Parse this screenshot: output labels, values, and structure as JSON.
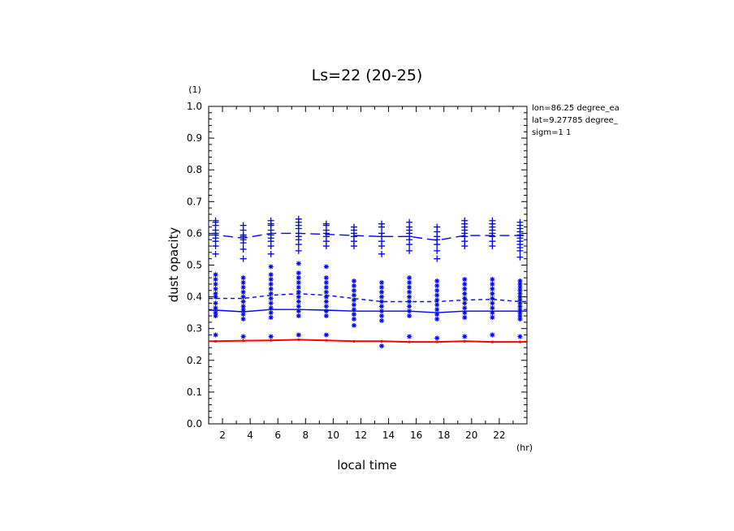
{
  "chart_data": {
    "type": "line",
    "title": "Ls=22 (20-25)",
    "xlabel": "local time",
    "ylabel": "dust opacity",
    "x_unit": "(hr)",
    "y_unit": "(1)",
    "xlim": [
      1,
      24
    ],
    "ylim": [
      0,
      1
    ],
    "xticks": [
      2,
      4,
      6,
      8,
      10,
      12,
      14,
      16,
      18,
      20,
      22
    ],
    "yticks": [
      0.0,
      0.1,
      0.2,
      0.3,
      0.4,
      0.5,
      0.6,
      0.7,
      0.8,
      0.9,
      1.0
    ],
    "grid": false,
    "info_lines": [
      "lon=86.25 degree_ea",
      "lat=9.27785 degree_",
      "sigm=1 1"
    ],
    "x": [
      1.5,
      3.5,
      5.5,
      7.5,
      9.5,
      11.5,
      13.5,
      15.5,
      17.5,
      19.5,
      21.5,
      23.5
    ],
    "series": [
      {
        "style": "dashed",
        "color": "#0000ff",
        "values": [
          0.595,
          0.585,
          0.6,
          0.6,
          0.597,
          0.593,
          0.59,
          0.59,
          0.578,
          0.593,
          0.593,
          0.593
        ]
      },
      {
        "style": "dashed",
        "color": "#0000ff",
        "values": [
          0.395,
          0.395,
          0.405,
          0.41,
          0.405,
          0.395,
          0.385,
          0.385,
          0.385,
          0.39,
          0.392,
          0.385
        ]
      },
      {
        "style": "solid",
        "color": "#0000ff",
        "values": [
          0.358,
          0.353,
          0.36,
          0.36,
          0.358,
          0.355,
          0.355,
          0.355,
          0.35,
          0.355,
          0.355,
          0.355
        ]
      },
      {
        "style": "solid",
        "color": "#ff0000",
        "values": [
          0.26,
          0.262,
          0.263,
          0.265,
          0.263,
          0.26,
          0.26,
          0.258,
          0.258,
          0.26,
          0.258,
          0.258
        ]
      }
    ],
    "scatter_plus": [
      {
        "x": 1.5,
        "y": [
          0.64,
          0.635,
          0.625,
          0.61,
          0.6,
          0.595,
          0.585,
          0.575,
          0.56,
          0.535
        ]
      },
      {
        "x": 3.5,
        "y": [
          0.625,
          0.61,
          0.595,
          0.59,
          0.58,
          0.57,
          0.55,
          0.52
        ]
      },
      {
        "x": 5.5,
        "y": [
          0.64,
          0.63,
          0.625,
          0.61,
          0.595,
          0.585,
          0.575,
          0.56,
          0.535
        ]
      },
      {
        "x": 7.5,
        "y": [
          0.645,
          0.635,
          0.625,
          0.615,
          0.6,
          0.59,
          0.58,
          0.565,
          0.545
        ]
      },
      {
        "x": 9.5,
        "y": [
          0.63,
          0.625,
          0.61,
          0.6,
          0.59,
          0.575,
          0.56
        ]
      },
      {
        "x": 11.5,
        "y": [
          0.62,
          0.61,
          0.6,
          0.59,
          0.575,
          0.56
        ]
      },
      {
        "x": 13.5,
        "y": [
          0.63,
          0.62,
          0.6,
          0.59,
          0.575,
          0.56,
          0.535
        ]
      },
      {
        "x": 15.5,
        "y": [
          0.635,
          0.62,
          0.61,
          0.6,
          0.59,
          0.58,
          0.565,
          0.545
        ]
      },
      {
        "x": 17.5,
        "y": [
          0.62,
          0.605,
          0.59,
          0.58,
          0.565,
          0.545,
          0.52
        ]
      },
      {
        "x": 19.5,
        "y": [
          0.64,
          0.63,
          0.62,
          0.61,
          0.6,
          0.59,
          0.575,
          0.56
        ]
      },
      {
        "x": 21.5,
        "y": [
          0.64,
          0.63,
          0.62,
          0.61,
          0.6,
          0.59,
          0.575,
          0.56
        ]
      },
      {
        "x": 23.5,
        "y": [
          0.635,
          0.625,
          0.615,
          0.605,
          0.595,
          0.585,
          0.575,
          0.565,
          0.555,
          0.545,
          0.525
        ]
      }
    ],
    "scatter_star": [
      {
        "x": 1.5,
        "y": [
          0.47,
          0.455,
          0.44,
          0.425,
          0.41,
          0.4,
          0.38,
          0.365,
          0.35,
          0.34,
          0.28
        ]
      },
      {
        "x": 3.5,
        "y": [
          0.46,
          0.445,
          0.43,
          0.415,
          0.4,
          0.385,
          0.37,
          0.36,
          0.345,
          0.33,
          0.275
        ]
      },
      {
        "x": 5.5,
        "y": [
          0.495,
          0.47,
          0.455,
          0.44,
          0.425,
          0.41,
          0.395,
          0.38,
          0.365,
          0.35,
          0.335,
          0.275
        ]
      },
      {
        "x": 7.5,
        "y": [
          0.505,
          0.475,
          0.46,
          0.445,
          0.43,
          0.415,
          0.4,
          0.385,
          0.37,
          0.355,
          0.34,
          0.28
        ]
      },
      {
        "x": 9.5,
        "y": [
          0.495,
          0.46,
          0.445,
          0.43,
          0.415,
          0.4,
          0.385,
          0.37,
          0.355,
          0.34,
          0.28
        ]
      },
      {
        "x": 11.5,
        "y": [
          0.45,
          0.435,
          0.42,
          0.405,
          0.39,
          0.375,
          0.36,
          0.345,
          0.33,
          0.31
        ]
      },
      {
        "x": 13.5,
        "y": [
          0.445,
          0.43,
          0.415,
          0.4,
          0.385,
          0.37,
          0.355,
          0.34,
          0.325,
          0.245
        ]
      },
      {
        "x": 15.5,
        "y": [
          0.46,
          0.445,
          0.43,
          0.415,
          0.4,
          0.385,
          0.37,
          0.355,
          0.34,
          0.275
        ]
      },
      {
        "x": 17.5,
        "y": [
          0.45,
          0.435,
          0.42,
          0.405,
          0.39,
          0.375,
          0.36,
          0.345,
          0.33,
          0.27
        ]
      },
      {
        "x": 19.5,
        "y": [
          0.455,
          0.44,
          0.425,
          0.41,
          0.395,
          0.38,
          0.365,
          0.35,
          0.335,
          0.275
        ]
      },
      {
        "x": 21.5,
        "y": [
          0.455,
          0.44,
          0.425,
          0.41,
          0.395,
          0.38,
          0.365,
          0.35,
          0.335,
          0.28
        ]
      },
      {
        "x": 23.5,
        "y": [
          0.45,
          0.44,
          0.43,
          0.42,
          0.41,
          0.4,
          0.39,
          0.38,
          0.37,
          0.36,
          0.35,
          0.34,
          0.33,
          0.275
        ]
      }
    ]
  }
}
